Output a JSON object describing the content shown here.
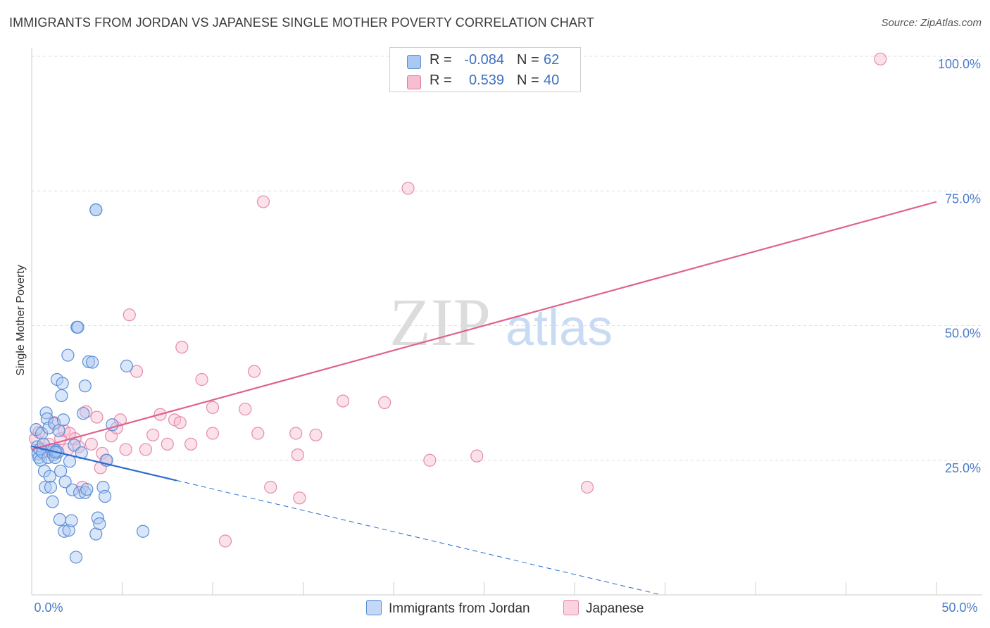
{
  "header": {
    "title": "IMMIGRANTS FROM JORDAN VS JAPANESE SINGLE MOTHER POVERTY CORRELATION CHART",
    "source": "Source: ZipAtlas.com"
  },
  "watermark": {
    "zip": "ZIP",
    "atlas": "atlas"
  },
  "legend": {
    "rows": [
      {
        "r_label": "R =",
        "r_value": "-0.084",
        "n_label": "N =",
        "n_value": "62",
        "color": "#aac8f2",
        "border": "#5b8fd6"
      },
      {
        "r_label": "R =",
        "r_value": "0.539",
        "n_label": "N =",
        "n_value": "40",
        "color": "#f7bdd0",
        "border": "#e07aa0"
      }
    ]
  },
  "bottom_legend": {
    "series_a": "Immigrants from Jordan",
    "series_b": "Japanese"
  },
  "colors": {
    "blue_fill": "#aac8f2",
    "blue_stroke": "#5b8fd6",
    "blue_line": "#2a6bd1",
    "pink_fill": "#f7bdd0",
    "pink_stroke": "#e58aab",
    "pink_line": "#e0628d",
    "axis_text": "#4a7cc9"
  },
  "chart_data": {
    "type": "scatter",
    "title": "IMMIGRANTS FROM JORDAN VS JAPANESE SINGLE MOTHER POVERTY CORRELATION CHART",
    "xlabel": "",
    "ylabel": "Single Mother Poverty",
    "xlim": [
      0,
      0.5
    ],
    "ylim": [
      0,
      1.0
    ],
    "x_tick_labels": {
      "min": "0.0%",
      "max": "50.0%"
    },
    "y_ticks": [
      {
        "value": 0.25,
        "label": "25.0%"
      },
      {
        "value": 0.5,
        "label": "50.0%"
      },
      {
        "value": 0.75,
        "label": "75.0%"
      },
      {
        "value": 1.0,
        "label": "100.0%"
      }
    ],
    "grid": true,
    "series": [
      {
        "name": "Immigrants from Jordan",
        "points": [
          [
            0.0025,
            0.307
          ],
          [
            0.003,
            0.275
          ],
          [
            0.0035,
            0.262
          ],
          [
            0.004,
            0.255
          ],
          [
            0.0045,
            0.27
          ],
          [
            0.005,
            0.25
          ],
          [
            0.0055,
            0.3
          ],
          [
            0.006,
            0.265
          ],
          [
            0.0065,
            0.28
          ],
          [
            0.007,
            0.23
          ],
          [
            0.0075,
            0.2
          ],
          [
            0.008,
            0.338
          ],
          [
            0.0085,
            0.327
          ],
          [
            0.009,
            0.255
          ],
          [
            0.0095,
            0.31
          ],
          [
            0.01,
            0.22
          ],
          [
            0.0105,
            0.2
          ],
          [
            0.011,
            0.27
          ],
          [
            0.0115,
            0.173
          ],
          [
            0.012,
            0.26
          ],
          [
            0.0125,
            0.318
          ],
          [
            0.013,
            0.255
          ],
          [
            0.0135,
            0.268
          ],
          [
            0.014,
            0.4
          ],
          [
            0.0145,
            0.265
          ],
          [
            0.015,
            0.305
          ],
          [
            0.0155,
            0.14
          ],
          [
            0.016,
            0.23
          ],
          [
            0.0165,
            0.37
          ],
          [
            0.017,
            0.393
          ],
          [
            0.0175,
            0.325
          ],
          [
            0.018,
            0.118
          ],
          [
            0.0185,
            0.21
          ],
          [
            0.013,
            0.265
          ],
          [
            0.02,
            0.445
          ],
          [
            0.0205,
            0.12
          ],
          [
            0.021,
            0.248
          ],
          [
            0.022,
            0.138
          ],
          [
            0.0225,
            0.195
          ],
          [
            0.0235,
            0.278
          ],
          [
            0.0245,
            0.07
          ],
          [
            0.025,
            0.497
          ],
          [
            0.0255,
            0.497
          ],
          [
            0.0265,
            0.19
          ],
          [
            0.0275,
            0.264
          ],
          [
            0.0285,
            0.337
          ],
          [
            0.0295,
            0.19
          ],
          [
            0.0295,
            0.388
          ],
          [
            0.0305,
            0.196
          ],
          [
            0.0315,
            0.433
          ],
          [
            0.0335,
            0.432
          ],
          [
            0.0355,
            0.113
          ],
          [
            0.0365,
            0.143
          ],
          [
            0.0375,
            0.132
          ],
          [
            0.0395,
            0.2
          ],
          [
            0.0405,
            0.183
          ],
          [
            0.0355,
            0.715
          ],
          [
            0.0355,
            0.715
          ],
          [
            0.0415,
            0.25
          ],
          [
            0.0445,
            0.316
          ],
          [
            0.0525,
            0.425
          ],
          [
            0.0615,
            0.118
          ]
        ],
        "trend": {
          "x0": 0.0,
          "y0": 0.276,
          "x_solid_end": 0.08,
          "x1": 0.348,
          "y1": 0.0
        }
      },
      {
        "name": "Japanese",
        "points": [
          [
            0.002,
            0.29
          ],
          [
            0.004,
            0.302
          ],
          [
            0.0065,
            0.27
          ],
          [
            0.0095,
            0.28
          ],
          [
            0.011,
            0.265
          ],
          [
            0.0125,
            0.32
          ],
          [
            0.0135,
            0.265
          ],
          [
            0.016,
            0.29
          ],
          [
            0.018,
            0.305
          ],
          [
            0.02,
            0.27
          ],
          [
            0.021,
            0.3
          ],
          [
            0.024,
            0.29
          ],
          [
            0.026,
            0.275
          ],
          [
            0.028,
            0.2
          ],
          [
            0.03,
            0.34
          ],
          [
            0.033,
            0.28
          ],
          [
            0.036,
            0.33
          ],
          [
            0.038,
            0.236
          ],
          [
            0.039,
            0.263
          ],
          [
            0.041,
            0.25
          ],
          [
            0.044,
            0.295
          ],
          [
            0.047,
            0.31
          ],
          [
            0.049,
            0.325
          ],
          [
            0.052,
            0.27
          ],
          [
            0.058,
            0.415
          ],
          [
            0.063,
            0.27
          ],
          [
            0.067,
            0.297
          ],
          [
            0.071,
            0.335
          ],
          [
            0.075,
            0.28
          ],
          [
            0.079,
            0.325
          ],
          [
            0.083,
            0.46
          ],
          [
            0.088,
            0.28
          ],
          [
            0.094,
            0.4
          ],
          [
            0.1,
            0.3
          ],
          [
            0.118,
            0.345
          ],
          [
            0.123,
            0.415
          ],
          [
            0.125,
            0.3
          ],
          [
            0.128,
            0.73
          ],
          [
            0.146,
            0.3
          ],
          [
            0.147,
            0.26
          ]
        ],
        "extra_points": [
          [
            0.054,
            0.52
          ],
          [
            0.082,
            0.32
          ],
          [
            0.1,
            0.348
          ],
          [
            0.107,
            0.1
          ],
          [
            0.132,
            0.2
          ],
          [
            0.148,
            0.18
          ],
          [
            0.157,
            0.297
          ],
          [
            0.172,
            0.36
          ],
          [
            0.195,
            0.357
          ],
          [
            0.208,
            0.755
          ],
          [
            0.22,
            0.25
          ],
          [
            0.246,
            0.258
          ],
          [
            0.307,
            0.2
          ],
          [
            0.469,
            0.995
          ]
        ],
        "trend": {
          "x0": 0.0,
          "y0": 0.27,
          "x1": 0.5,
          "y1": 0.73
        }
      }
    ]
  }
}
